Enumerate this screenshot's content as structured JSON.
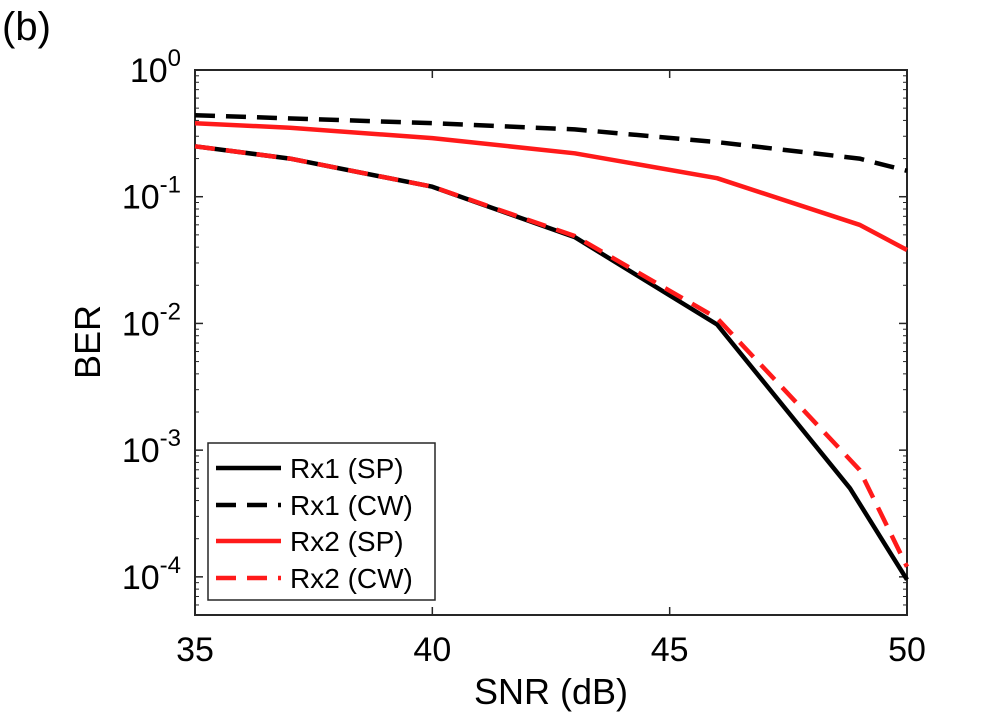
{
  "chart_data": {
    "type": "line",
    "panel_label": "(b)",
    "xlabel": "SNR (dB)",
    "ylabel": "BER",
    "xlim": [
      35,
      50
    ],
    "ylim": [
      5e-05,
      1
    ],
    "yscale": "log",
    "grid": false,
    "xticks": [
      35,
      40,
      45,
      50
    ],
    "xtick_labels": [
      "35",
      "40",
      "45",
      "50"
    ],
    "yticks": [
      {
        "value": 1,
        "base": "10",
        "exp": "0"
      },
      {
        "value": 0.1,
        "base": "10",
        "exp": "-1"
      },
      {
        "value": 0.01,
        "base": "10",
        "exp": "-2"
      },
      {
        "value": 0.001,
        "base": "10",
        "exp": "-3"
      },
      {
        "value": 0.0001,
        "base": "10",
        "exp": "-4"
      }
    ],
    "legend_position": "bottom-left",
    "series": [
      {
        "name": "Rx1 (SP)",
        "color": "#000000",
        "style": "solid",
        "x": [
          35,
          37,
          40,
          43,
          46,
          48.8,
          50
        ],
        "y": [
          0.25,
          0.2,
          0.12,
          0.048,
          0.0098,
          0.0005,
          9.5e-05
        ]
      },
      {
        "name": "Rx1 (CW)",
        "color": "#000000",
        "style": "dashed",
        "x": [
          35,
          40,
          43,
          46,
          49,
          50
        ],
        "y": [
          0.44,
          0.38,
          0.34,
          0.27,
          0.2,
          0.16
        ]
      },
      {
        "name": "Rx2 (SP)",
        "color": "#ff1a1a",
        "style": "solid",
        "x": [
          35,
          37,
          40,
          43,
          46,
          49,
          50
        ],
        "y": [
          0.38,
          0.35,
          0.29,
          0.22,
          0.14,
          0.06,
          0.038
        ]
      },
      {
        "name": "Rx2 (CW)",
        "color": "#ff1a1a",
        "style": "dashed",
        "x": [
          35,
          37,
          40,
          43,
          46,
          49,
          50
        ],
        "y": [
          0.25,
          0.2,
          0.12,
          0.049,
          0.011,
          0.0007,
          0.00012
        ]
      }
    ]
  }
}
